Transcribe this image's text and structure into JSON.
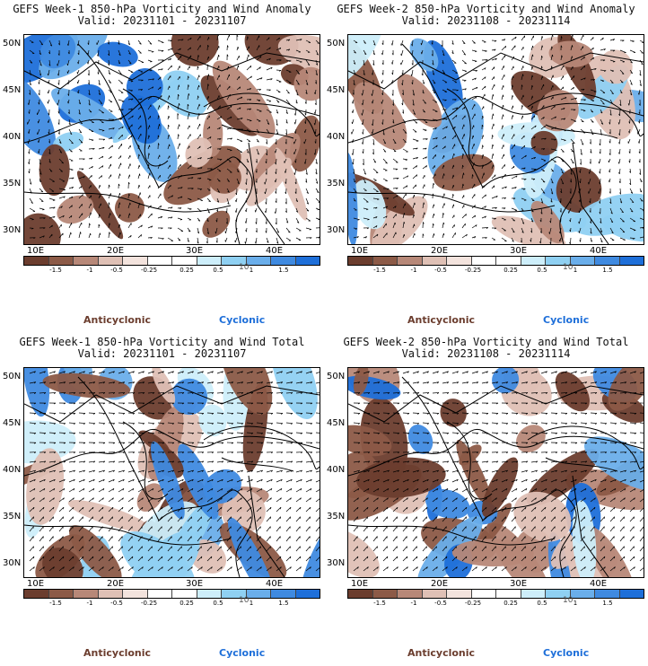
{
  "panels": [
    {
      "title_line1": "GEFS Week-1 850-hPa Vorticity and Wind Anomaly",
      "title_line2": "Valid: 20231101 - 20231107",
      "mode": "anomaly",
      "seed": 11
    },
    {
      "title_line1": "GEFS Week-2 850-hPa Vorticity and Wind Anomaly",
      "title_line2": "Valid: 20231108 - 20231114",
      "mode": "anomaly2",
      "seed": 23
    },
    {
      "title_line1": "GEFS Week-1 850-hPa Vorticity and Wind Total",
      "title_line2": "Valid: 20231101 - 20231107",
      "mode": "total",
      "seed": 37
    },
    {
      "title_line1": "GEFS Week-2 850-hPa Vorticity and Wind Total",
      "title_line2": "Valid: 20231108 - 20231114",
      "mode": "total2",
      "seed": 51
    }
  ],
  "lat_labels": [
    "50N",
    "45N",
    "40N",
    "35N",
    "30N"
  ],
  "lon_labels": [
    "10E",
    "20E",
    "30E",
    "40E"
  ],
  "colorbar": {
    "colors": [
      "#6b3d2e",
      "#8c5a47",
      "#b78878",
      "#dfc0b5",
      "#f3e3dd",
      "#ffffff",
      "#ffffff",
      "#cdeefa",
      "#8fd0f2",
      "#6aaeea",
      "#3f8ae0",
      "#1e6fd9"
    ],
    "tick_labels": [
      "-1.5",
      "-1",
      "-0.5",
      "-0.25",
      "0.25",
      "0.5",
      "1",
      "1.5"
    ],
    "unit": "10"
  },
  "legend": {
    "anticyclonic": "Anticyclonic",
    "cyclonic": "Cyclonic"
  }
}
